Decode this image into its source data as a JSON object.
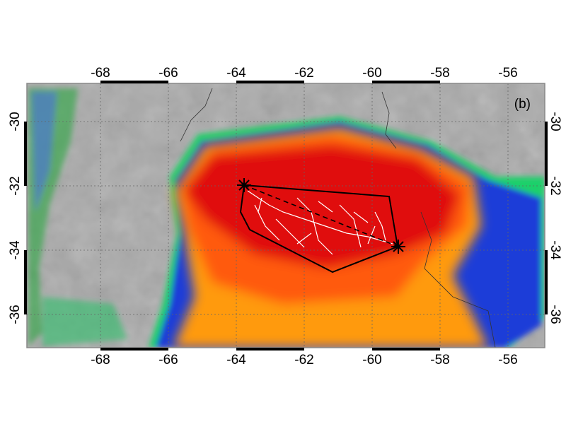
{
  "panel_label": "(b)",
  "longitude_ticks": [
    -68,
    -66,
    -64,
    -62,
    -60,
    -58,
    -56
  ],
  "latitude_ticks": [
    -30,
    -32,
    -34,
    -36
  ]
}
